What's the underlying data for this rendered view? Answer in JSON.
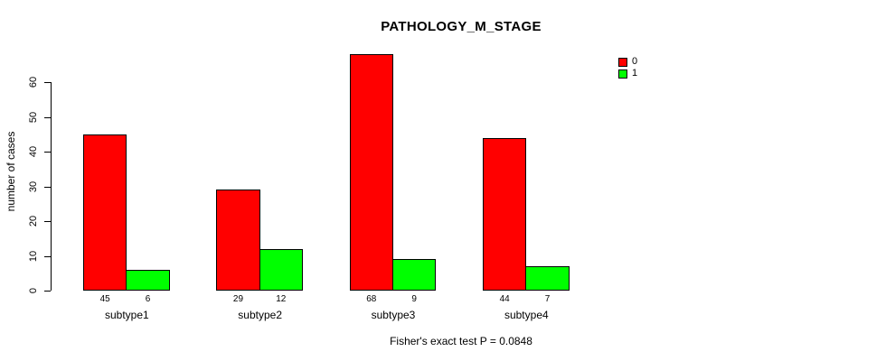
{
  "title": "PATHOLOGY_M_STAGE",
  "footer": {
    "text": "Fisher's exact test P = 0.0848"
  },
  "chart_data": {
    "type": "bar",
    "title": "PATHOLOGY_M_STAGE",
    "categories": [
      "subtype1",
      "subtype2",
      "subtype3",
      "subtype4"
    ],
    "series": [
      {
        "name": "0",
        "color": "#FF0000",
        "values": [
          45,
          29,
          68,
          44
        ]
      },
      {
        "name": "1",
        "color": "#00FF00",
        "values": [
          6,
          12,
          9,
          7
        ]
      }
    ],
    "xlabel": "",
    "ylabel": "number of cases",
    "ylim": [
      0,
      60
    ],
    "yticks": [
      0,
      10,
      20,
      30,
      40,
      50,
      60
    ],
    "grid": false,
    "legend_position": "top-right",
    "bar_value_labels": true,
    "annotation": "Fisher's exact test P = 0.0848"
  }
}
